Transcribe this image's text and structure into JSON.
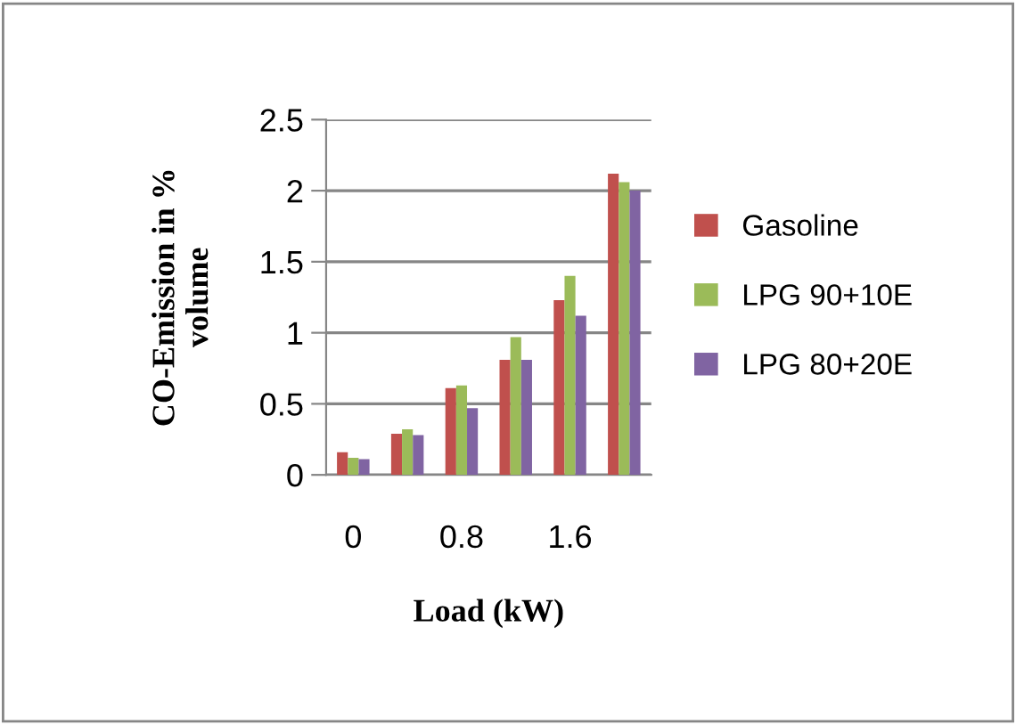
{
  "chart_data": {
    "type": "bar",
    "xlabel": "Load (kW)",
    "ylabel": "CO-Emission in %\nvolume",
    "categories": [
      "0",
      null,
      "0.8",
      null,
      "1.6",
      null
    ],
    "series": [
      {
        "name": "Gasoline",
        "color": "#c0504d",
        "values": [
          0.16,
          0.29,
          0.61,
          0.81,
          1.23,
          2.12
        ]
      },
      {
        "name": "LPG 90+10E",
        "color": "#9bbb59",
        "values": [
          0.12,
          0.32,
          0.63,
          0.97,
          1.4,
          2.06
        ]
      },
      {
        "name": "LPG 80+20E",
        "color": "#8064a2",
        "values": [
          0.11,
          0.28,
          0.47,
          0.81,
          1.12,
          2.0
        ]
      }
    ],
    "ylim": [
      0,
      2.5
    ],
    "yticks": [
      0,
      0.5,
      1,
      1.5,
      2,
      2.5
    ],
    "grid": "y",
    "legend": "right"
  }
}
